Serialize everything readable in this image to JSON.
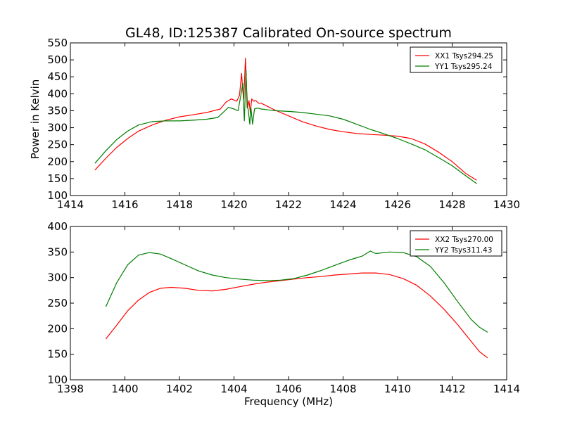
{
  "figure": {
    "title": "GL48, ID:125387 Calibrated On-source spectrum"
  },
  "colors": {
    "red": "#ff0000",
    "green": "#007f00"
  },
  "chart_data": [
    {
      "type": "line",
      "title": "GL48, ID:125387 Calibrated On-source spectrum",
      "xlabel": "",
      "ylabel": "Power in Kelvin",
      "xlim": [
        1414,
        1430
      ],
      "ylim": [
        100,
        550
      ],
      "xticks": [
        1414,
        1416,
        1418,
        1420,
        1422,
        1424,
        1426,
        1428,
        1430
      ],
      "yticks": [
        100,
        150,
        200,
        250,
        300,
        350,
        400,
        450,
        500,
        550
      ],
      "grid": false,
      "legend": "top-right",
      "series": [
        {
          "name": "XX1 Tsys294.25",
          "color": "#ff0000",
          "x": [
            1414.9,
            1415.3,
            1415.7,
            1416.1,
            1416.5,
            1417.0,
            1417.5,
            1418.0,
            1418.5,
            1419.0,
            1419.5,
            1419.7,
            1419.9,
            1420.1,
            1420.2,
            1420.28,
            1420.32,
            1420.36,
            1420.42,
            1420.46,
            1420.5,
            1420.55,
            1420.6,
            1420.65,
            1420.72,
            1420.8,
            1420.9,
            1421.0,
            1421.5,
            1422.0,
            1422.5,
            1423.0,
            1423.5,
            1424.0,
            1424.5,
            1425.0,
            1425.5,
            1426.0,
            1426.5,
            1427.0,
            1427.5,
            1428.0,
            1428.5,
            1428.9
          ],
          "y": [
            175,
            210,
            242,
            268,
            290,
            308,
            322,
            332,
            338,
            345,
            355,
            375,
            385,
            378,
            395,
            460,
            410,
            385,
            505,
            420,
            360,
            380,
            345,
            385,
            378,
            380,
            372,
            372,
            352,
            335,
            318,
            305,
            295,
            288,
            283,
            280,
            278,
            275,
            268,
            252,
            228,
            200,
            165,
            145
          ]
        },
        {
          "name": "YY1 Tsys295.24",
          "color": "#007f00",
          "x": [
            1414.9,
            1415.3,
            1415.7,
            1416.1,
            1416.5,
            1417.0,
            1417.5,
            1418.0,
            1418.5,
            1419.0,
            1419.4,
            1419.6,
            1419.8,
            1420.0,
            1420.15,
            1420.25,
            1420.32,
            1420.38,
            1420.44,
            1420.48,
            1420.52,
            1420.58,
            1420.62,
            1420.68,
            1420.75,
            1420.85,
            1421.0,
            1421.5,
            1422.0,
            1422.5,
            1423.0,
            1423.5,
            1424.0,
            1424.5,
            1425.0,
            1425.5,
            1426.0,
            1426.5,
            1427.0,
            1427.5,
            1428.0,
            1428.5,
            1428.9
          ],
          "y": [
            195,
            232,
            265,
            290,
            308,
            318,
            320,
            320,
            322,
            325,
            330,
            345,
            360,
            355,
            350,
            395,
            430,
            320,
            470,
            360,
            355,
            310,
            360,
            310,
            355,
            358,
            355,
            350,
            348,
            345,
            340,
            335,
            325,
            310,
            295,
            282,
            268,
            252,
            235,
            212,
            188,
            158,
            135
          ]
        }
      ]
    },
    {
      "type": "line",
      "title": "",
      "xlabel": "Frequency (MHz)",
      "ylabel": "",
      "xlim": [
        1398,
        1414
      ],
      "ylim": [
        100,
        400
      ],
      "xticks": [
        1398,
        1400,
        1402,
        1404,
        1406,
        1408,
        1410,
        1412,
        1414
      ],
      "yticks": [
        100,
        150,
        200,
        250,
        300,
        350,
        400
      ],
      "grid": false,
      "legend": "top-right",
      "series": [
        {
          "name": "XX2 Tsys270.00",
          "color": "#ff0000",
          "x": [
            1399.3,
            1399.7,
            1400.1,
            1400.5,
            1400.9,
            1401.3,
            1401.7,
            1402.2,
            1402.7,
            1403.2,
            1403.7,
            1404.2,
            1404.7,
            1405.2,
            1405.7,
            1406.2,
            1406.7,
            1407.2,
            1407.7,
            1408.2,
            1408.7,
            1409.2,
            1409.7,
            1410.2,
            1410.7,
            1411.2,
            1411.7,
            1412.2,
            1412.7,
            1413.0,
            1413.3
          ],
          "y": [
            180,
            207,
            235,
            256,
            271,
            279,
            281,
            279,
            275,
            274,
            277,
            282,
            287,
            291,
            294,
            297,
            300,
            302,
            305,
            307,
            309,
            309,
            306,
            298,
            285,
            264,
            238,
            208,
            175,
            155,
            143
          ]
        },
        {
          "name": "YY2 Tsys311.43",
          "color": "#007f00",
          "x": [
            1399.3,
            1399.7,
            1400.1,
            1400.5,
            1400.9,
            1401.3,
            1401.7,
            1402.2,
            1402.7,
            1403.2,
            1403.7,
            1404.2,
            1404.7,
            1405.2,
            1405.7,
            1406.2,
            1406.7,
            1407.2,
            1407.7,
            1408.2,
            1408.7,
            1409.0,
            1409.2,
            1409.7,
            1410.2,
            1410.7,
            1411.2,
            1411.7,
            1412.2,
            1412.7,
            1413.0,
            1413.3
          ],
          "y": [
            243,
            290,
            325,
            344,
            349,
            346,
            337,
            325,
            313,
            305,
            300,
            297,
            295,
            294,
            295,
            298,
            305,
            314,
            324,
            334,
            342,
            352,
            347,
            350,
            349,
            341,
            322,
            290,
            253,
            218,
            203,
            193
          ]
        }
      ]
    }
  ]
}
